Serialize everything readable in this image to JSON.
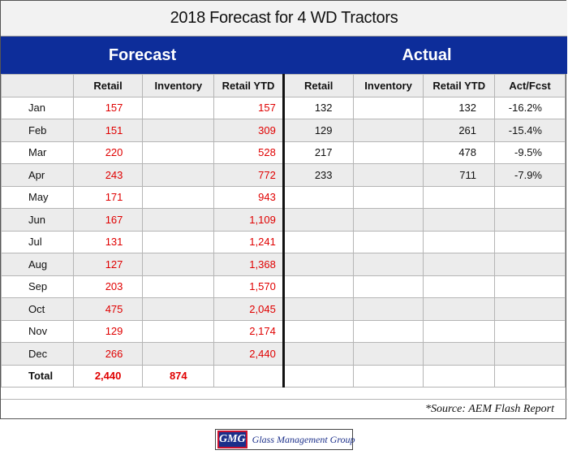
{
  "title": "2018 Forecast for 4 WD Tractors",
  "sections": {
    "forecast": "Forecast",
    "actual": "Actual"
  },
  "columns": [
    "Retail",
    "Inventory",
    "Retail YTD",
    "Retail",
    "Inventory",
    "Retail YTD",
    "Act/Fcst"
  ],
  "rows": [
    {
      "month": "Jan",
      "f_retail": "157",
      "f_inventory": "",
      "f_ytd": "157",
      "a_retail": "132",
      "a_inventory": "",
      "a_ytd": "132",
      "act_fcst": "-16.2%"
    },
    {
      "month": "Feb",
      "f_retail": "151",
      "f_inventory": "",
      "f_ytd": "309",
      "a_retail": "129",
      "a_inventory": "",
      "a_ytd": "261",
      "act_fcst": "-15.4%"
    },
    {
      "month": "Mar",
      "f_retail": "220",
      "f_inventory": "",
      "f_ytd": "528",
      "a_retail": "217",
      "a_inventory": "",
      "a_ytd": "478",
      "act_fcst": "-9.5%"
    },
    {
      "month": "Apr",
      "f_retail": "243",
      "f_inventory": "",
      "f_ytd": "772",
      "a_retail": "233",
      "a_inventory": "",
      "a_ytd": "711",
      "act_fcst": "-7.9%"
    },
    {
      "month": "May",
      "f_retail": "171",
      "f_inventory": "",
      "f_ytd": "943",
      "a_retail": "",
      "a_inventory": "",
      "a_ytd": "",
      "act_fcst": ""
    },
    {
      "month": "Jun",
      "f_retail": "167",
      "f_inventory": "",
      "f_ytd": "1,109",
      "a_retail": "",
      "a_inventory": "",
      "a_ytd": "",
      "act_fcst": ""
    },
    {
      "month": "Jul",
      "f_retail": "131",
      "f_inventory": "",
      "f_ytd": "1,241",
      "a_retail": "",
      "a_inventory": "",
      "a_ytd": "",
      "act_fcst": ""
    },
    {
      "month": "Aug",
      "f_retail": "127",
      "f_inventory": "",
      "f_ytd": "1,368",
      "a_retail": "",
      "a_inventory": "",
      "a_ytd": "",
      "act_fcst": ""
    },
    {
      "month": "Sep",
      "f_retail": "203",
      "f_inventory": "",
      "f_ytd": "1,570",
      "a_retail": "",
      "a_inventory": "",
      "a_ytd": "",
      "act_fcst": ""
    },
    {
      "month": "Oct",
      "f_retail": "475",
      "f_inventory": "",
      "f_ytd": "2,045",
      "a_retail": "",
      "a_inventory": "",
      "a_ytd": "",
      "act_fcst": ""
    },
    {
      "month": "Nov",
      "f_retail": "129",
      "f_inventory": "",
      "f_ytd": "2,174",
      "a_retail": "",
      "a_inventory": "",
      "a_ytd": "",
      "act_fcst": ""
    },
    {
      "month": "Dec",
      "f_retail": "266",
      "f_inventory": "",
      "f_ytd": "2,440",
      "a_retail": "",
      "a_inventory": "",
      "a_ytd": "",
      "act_fcst": ""
    }
  ],
  "total": {
    "label": "Total",
    "f_retail": "2,440",
    "f_inventory": "874"
  },
  "source": "*Source: AEM Flash Report",
  "logo": {
    "mark": "GMG",
    "text": "Glass Management Group"
  },
  "colors": {
    "band": "#0d2d9a",
    "forecast_value": "#e00000",
    "stripe": "#ececec"
  }
}
